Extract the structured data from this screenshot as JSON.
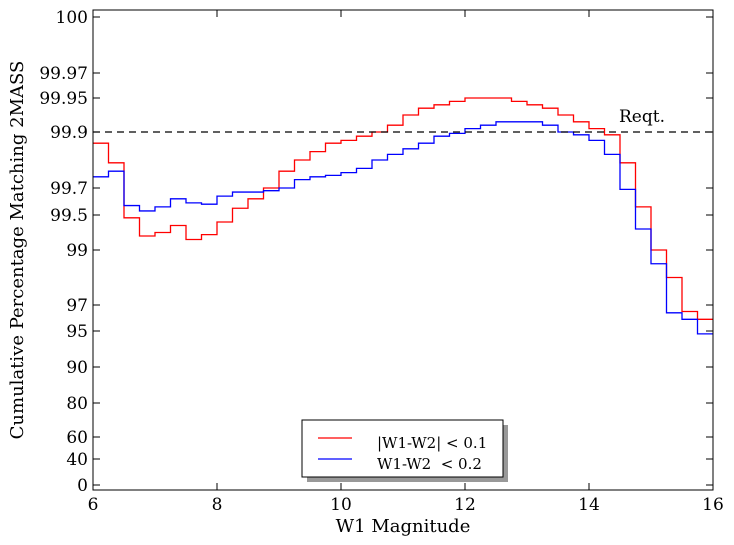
{
  "chart_data": {
    "type": "line",
    "style": "step",
    "xlabel": "W1 Magnitude",
    "ylabel": "Cumulative Percentage Matching 2MASS",
    "x_ticks": [
      "6",
      "8",
      "10",
      "12",
      "14",
      "16"
    ],
    "y_ticks": [
      "0",
      "40",
      "60",
      "80",
      "90",
      "95",
      "97",
      "99",
      "99.5",
      "99.7",
      "99.9",
      "99.95",
      "99.97",
      "100"
    ],
    "xlim": [
      6,
      16
    ],
    "y_scale": "non-linear (compressed toward 100)",
    "reference_line": {
      "value": 99.9,
      "label": "Reqt.",
      "style": "dashed"
    },
    "legend": {
      "placement": "bottom-center"
    },
    "x_edges": [
      6,
      6.25,
      6.5,
      6.75,
      7,
      7.25,
      7.5,
      7.75,
      8,
      8.25,
      8.5,
      8.75,
      9,
      9.25,
      9.5,
      9.75,
      10,
      10.25,
      10.5,
      10.75,
      11,
      11.25,
      11.5,
      11.75,
      12,
      12.25,
      12.5,
      12.75,
      13,
      13.25,
      13.5,
      13.75,
      14,
      14.25,
      14.5,
      14.75,
      15,
      15.25,
      15.5,
      15.75,
      16
    ],
    "series": [
      {
        "name": "|W1-W2| < 0.1",
        "color": "#ff0000",
        "values": [
          99.86,
          99.79,
          99.46,
          99.2,
          99.25,
          99.35,
          99.15,
          99.22,
          99.4,
          99.55,
          99.62,
          99.7,
          99.76,
          99.8,
          99.83,
          99.86,
          99.87,
          99.885,
          99.9,
          99.91,
          99.925,
          99.935,
          99.94,
          99.945,
          99.95,
          99.95,
          99.95,
          99.945,
          99.94,
          99.935,
          99.925,
          99.915,
          99.905,
          99.89,
          99.79,
          99.56,
          99.0,
          98.0,
          96.5,
          95.9
        ]
      },
      {
        "name": "W1-W2  < 0.2",
        "color": "#0000ff",
        "values": [
          99.74,
          99.76,
          99.57,
          99.53,
          99.56,
          99.62,
          99.59,
          99.58,
          99.64,
          99.67,
          99.67,
          99.68,
          99.7,
          99.73,
          99.74,
          99.745,
          99.755,
          99.77,
          99.8,
          99.82,
          99.84,
          99.86,
          99.885,
          99.895,
          99.905,
          99.91,
          99.915,
          99.915,
          99.915,
          99.91,
          99.9,
          99.89,
          99.87,
          99.82,
          99.69,
          99.3,
          98.5,
          96.4,
          95.9,
          94.6
        ]
      }
    ]
  }
}
